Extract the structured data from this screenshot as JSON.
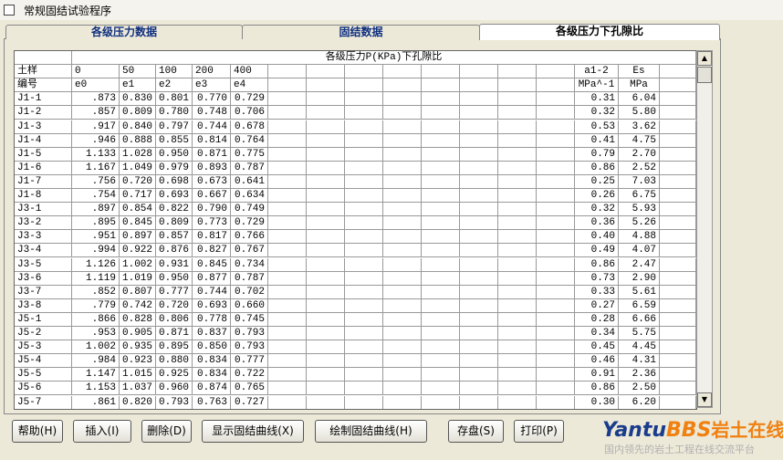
{
  "window": {
    "title": "常规固结试验程序"
  },
  "tabs": [
    "各级压力数据",
    "固结数据",
    "各级压力下孔隙比"
  ],
  "table": {
    "title": "各级压力P(KPa)下孔隙比",
    "header": [
      [
        "土样",
        "0",
        "50",
        "100",
        "200",
        "400",
        "a1-2",
        "Es"
      ],
      [
        "编号",
        "e0",
        "e1",
        "e2",
        "e3",
        "e4",
        "MPa^-1",
        "MPa"
      ]
    ],
    "rows": [
      [
        "J1-1",
        ".873",
        "0.830",
        "0.801",
        "0.770",
        "0.729",
        "0.31",
        "6.04"
      ],
      [
        "J1-2",
        ".857",
        "0.809",
        "0.780",
        "0.748",
        "0.706",
        "0.32",
        "5.80"
      ],
      [
        "J1-3",
        ".917",
        "0.840",
        "0.797",
        "0.744",
        "0.678",
        "0.53",
        "3.62"
      ],
      [
        "J1-4",
        ".946",
        "0.888",
        "0.855",
        "0.814",
        "0.764",
        "0.41",
        "4.75"
      ],
      [
        "J1-5",
        "1.133",
        "1.028",
        "0.950",
        "0.871",
        "0.775",
        "0.79",
        "2.70"
      ],
      [
        "J1-6",
        "1.167",
        "1.049",
        "0.979",
        "0.893",
        "0.787",
        "0.86",
        "2.52"
      ],
      [
        "J1-7",
        ".756",
        "0.720",
        "0.698",
        "0.673",
        "0.641",
        "0.25",
        "7.03"
      ],
      [
        "J1-8",
        ".754",
        "0.717",
        "0.693",
        "0.667",
        "0.634",
        "0.26",
        "6.75"
      ],
      [
        "J3-1",
        ".897",
        "0.854",
        "0.822",
        "0.790",
        "0.749",
        "0.32",
        "5.93"
      ],
      [
        "J3-2",
        ".895",
        "0.845",
        "0.809",
        "0.773",
        "0.729",
        "0.36",
        "5.26"
      ],
      [
        "J3-3",
        ".951",
        "0.897",
        "0.857",
        "0.817",
        "0.766",
        "0.40",
        "4.88"
      ],
      [
        "J3-4",
        ".994",
        "0.922",
        "0.876",
        "0.827",
        "0.767",
        "0.49",
        "4.07"
      ],
      [
        "J3-5",
        "1.126",
        "1.002",
        "0.931",
        "0.845",
        "0.734",
        "0.86",
        "2.47"
      ],
      [
        "J3-6",
        "1.119",
        "1.019",
        "0.950",
        "0.877",
        "0.787",
        "0.73",
        "2.90"
      ],
      [
        "J3-7",
        ".852",
        "0.807",
        "0.777",
        "0.744",
        "0.702",
        "0.33",
        "5.61"
      ],
      [
        "J3-8",
        ".779",
        "0.742",
        "0.720",
        "0.693",
        "0.660",
        "0.27",
        "6.59"
      ],
      [
        "J5-1",
        ".866",
        "0.828",
        "0.806",
        "0.778",
        "0.745",
        "0.28",
        "6.66"
      ],
      [
        "J5-2",
        ".953",
        "0.905",
        "0.871",
        "0.837",
        "0.793",
        "0.34",
        "5.75"
      ],
      [
        "J5-3",
        "1.002",
        "0.935",
        "0.895",
        "0.850",
        "0.793",
        "0.45",
        "4.45"
      ],
      [
        "J5-4",
        ".984",
        "0.923",
        "0.880",
        "0.834",
        "0.777",
        "0.46",
        "4.31"
      ],
      [
        "J5-5",
        "1.147",
        "1.015",
        "0.925",
        "0.834",
        "0.722",
        "0.91",
        "2.36"
      ],
      [
        "J5-6",
        "1.153",
        "1.037",
        "0.960",
        "0.874",
        "0.765",
        "0.86",
        "2.50"
      ],
      [
        "J5-7",
        ".861",
        "0.820",
        "0.793",
        "0.763",
        "0.727",
        "0.30",
        "6.20"
      ]
    ]
  },
  "buttons": [
    "帮助(H)",
    "插入(I)",
    "删除(D)",
    "显示固结曲线(X)",
    "绘制固结曲线(H)",
    "存盘(S)",
    "打印(P)"
  ],
  "logo": {
    "part1": "Yantu",
    "part2": "BBS",
    "part3": "岩土在线",
    "slogan": "国内领先的岩土工程在线交流平台"
  }
}
